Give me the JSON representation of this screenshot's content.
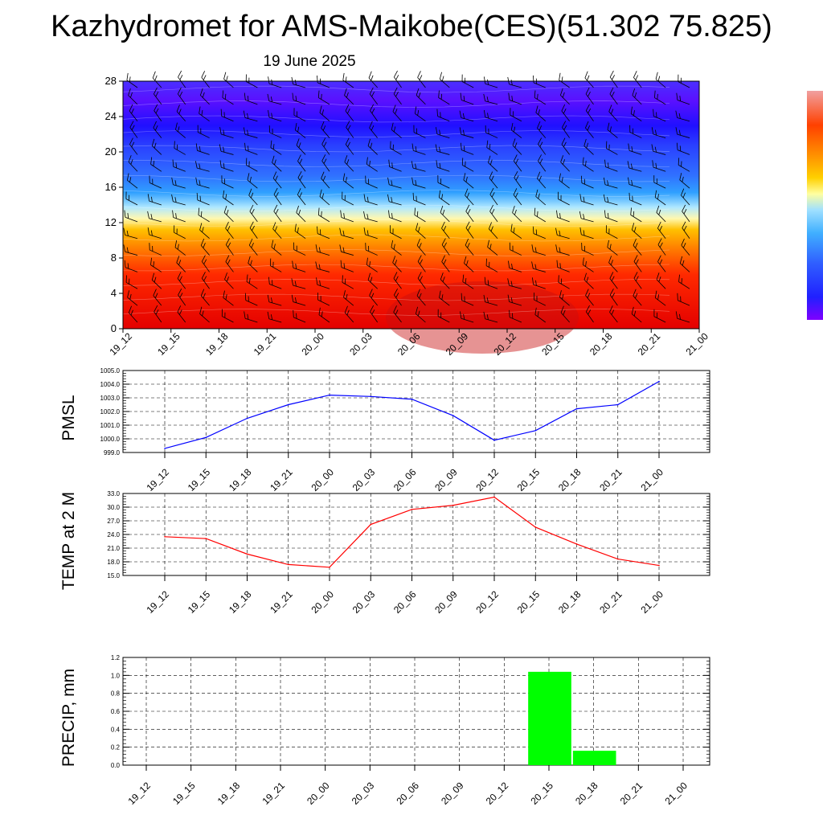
{
  "title": "Kazhydromet for AMS-Maikobe(CES)(51.302 75.825)",
  "subtitle": "19 June 2025",
  "chart_data": [
    {
      "type": "heatmap",
      "x_labels": [
        "19_12",
        "19_15",
        "19_18",
        "19_21",
        "20_00",
        "20_03",
        "20_06",
        "20_09",
        "20_12",
        "20_15",
        "20_18",
        "20_21",
        "21_00"
      ],
      "ylim": [
        0,
        28
      ],
      "y_ticks": [
        "0",
        "4",
        "8",
        "12",
        "16",
        "20",
        "24",
        "28"
      ],
      "colorbar_colors": [
        "#8000ff",
        "#2020ff",
        "#3060ff",
        "#40b0ff",
        "#a0e0ff",
        "#ffffa0",
        "#ffd000",
        "#ff9000",
        "#ff4000",
        "#e00000"
      ],
      "overlay": "wind barbs"
    },
    {
      "type": "line",
      "ylabel": "PMSL",
      "categories": [
        "19_12",
        "19_15",
        "19_18",
        "19_21",
        "20_00",
        "20_03",
        "20_06",
        "20_09",
        "20_12",
        "20_15",
        "20_18",
        "20_21",
        "21_00"
      ],
      "values": [
        999.3,
        1000.1,
        1001.5,
        1002.5,
        1003.2,
        1003.1,
        1002.9,
        1001.7,
        999.9,
        1000.6,
        1002.2,
        1002.5,
        1004.2
      ],
      "ylim": [
        999.0,
        1005.0
      ],
      "y_ticks": [
        "999.0",
        "1000.0",
        "1001.0",
        "1002.0",
        "1003.0",
        "1004.0",
        "1005.0"
      ],
      "color": "#0000ff",
      "grid": true
    },
    {
      "type": "line",
      "ylabel": "TEMP at 2 M",
      "categories": [
        "19_12",
        "19_15",
        "19_18",
        "19_21",
        "20_00",
        "20_03",
        "20_06",
        "20_09",
        "20_12",
        "20_15",
        "20_18",
        "20_21",
        "21_00"
      ],
      "values": [
        23.5,
        23.1,
        19.7,
        17.4,
        16.8,
        26.2,
        29.5,
        30.4,
        32.2,
        25.6,
        21.9,
        18.6,
        17.2
      ],
      "ylim": [
        15.0,
        33.0
      ],
      "y_ticks": [
        "15.0",
        "18.0",
        "21.0",
        "24.0",
        "27.0",
        "30.0",
        "33.0"
      ],
      "color": "#ff0000",
      "grid": true
    },
    {
      "type": "bar",
      "ylabel": "PRECIP, mm",
      "categories": [
        "19_12",
        "19_15",
        "19_18",
        "19_21",
        "20_00",
        "20_03",
        "20_06",
        "20_09",
        "20_12",
        "20_15",
        "20_18",
        "20_21",
        "21_00"
      ],
      "values": [
        0,
        0,
        0,
        0,
        0,
        0,
        0,
        0,
        0,
        1.04,
        0.16,
        0,
        0
      ],
      "ylim": [
        0.0,
        1.2
      ],
      "y_ticks": [
        "0.0",
        "0.2",
        "0.4",
        "0.6",
        "0.8",
        "1.0",
        "1.2"
      ],
      "color": "#00ff00",
      "grid": true
    }
  ]
}
